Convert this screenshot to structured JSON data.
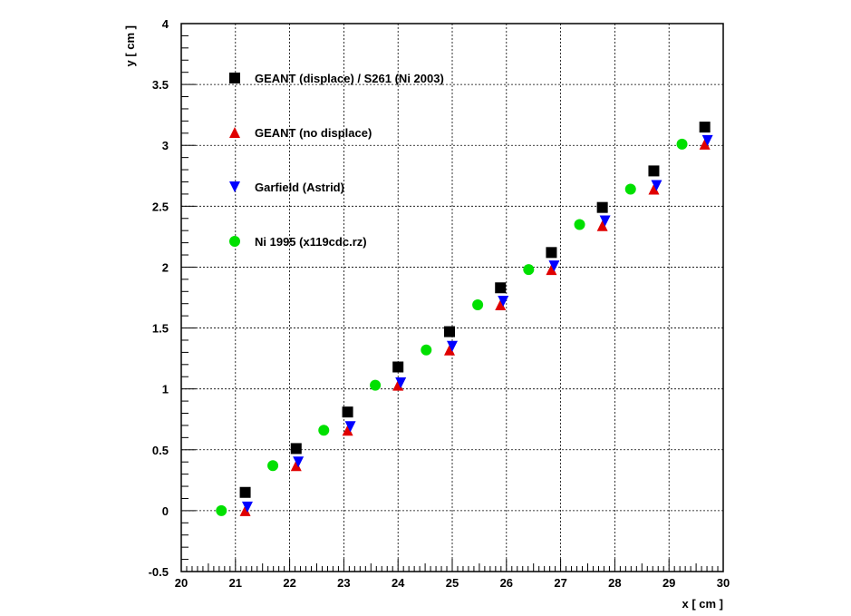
{
  "chart_data": {
    "type": "scatter",
    "xlabel": "x [ cm ]",
    "ylabel": "y [ cm ]",
    "xlim": [
      20,
      30
    ],
    "ylim": [
      -0.5,
      4
    ],
    "x_ticks": [
      20,
      21,
      22,
      23,
      24,
      25,
      26,
      27,
      28,
      29,
      30
    ],
    "y_ticks": [
      -0.5,
      0,
      0.5,
      1,
      1.5,
      2,
      2.5,
      3,
      3.5,
      4
    ],
    "x_tick_labels": [
      "20",
      "21",
      "22",
      "23",
      "24",
      "25",
      "26",
      "27",
      "28",
      "29",
      "30"
    ],
    "y_tick_labels": [
      "-0.5",
      "0",
      "0.5",
      "1",
      "1.5",
      "2",
      "2.5",
      "3",
      "3.5",
      "4"
    ],
    "grid": true,
    "legend_position": "top-left",
    "series": [
      {
        "name": "GEANT (displace) / S261 (Ni 2003)",
        "marker": "square",
        "color": "#000000",
        "x": [
          21.18,
          22.12,
          23.07,
          24.0,
          24.95,
          25.89,
          26.83,
          27.77,
          28.72,
          29.66
        ],
        "y": [
          0.15,
          0.51,
          0.81,
          1.18,
          1.47,
          1.83,
          2.12,
          2.49,
          2.79,
          3.15
        ]
      },
      {
        "name": "GEANT (no displace)",
        "marker": "triangle-up",
        "color": "#e00000",
        "x": [
          21.18,
          22.12,
          23.07,
          24.0,
          24.95,
          25.89,
          26.83,
          27.77,
          28.72,
          29.66
        ],
        "y": [
          0.0,
          0.37,
          0.66,
          1.03,
          1.32,
          1.69,
          1.98,
          2.34,
          2.64,
          3.01
        ]
      },
      {
        "name": "Garfield (Astrid)",
        "marker": "triangle-down",
        "color": "#0000ff",
        "x": [
          21.22,
          22.16,
          23.12,
          24.05,
          25.0,
          25.94,
          26.88,
          27.82,
          28.77,
          29.71
        ],
        "y": [
          0.03,
          0.4,
          0.69,
          1.05,
          1.35,
          1.72,
          2.01,
          2.38,
          2.67,
          3.04
        ]
      },
      {
        "name": "Ni 1995 (x119cdc.rz)",
        "marker": "circle",
        "color": "#00e000",
        "x": [
          20.74,
          21.69,
          22.63,
          23.58,
          24.52,
          25.47,
          26.41,
          27.35,
          28.29,
          29.24
        ],
        "y": [
          0.0,
          0.37,
          0.66,
          1.03,
          1.32,
          1.69,
          1.98,
          2.35,
          2.64,
          3.01
        ]
      }
    ]
  }
}
